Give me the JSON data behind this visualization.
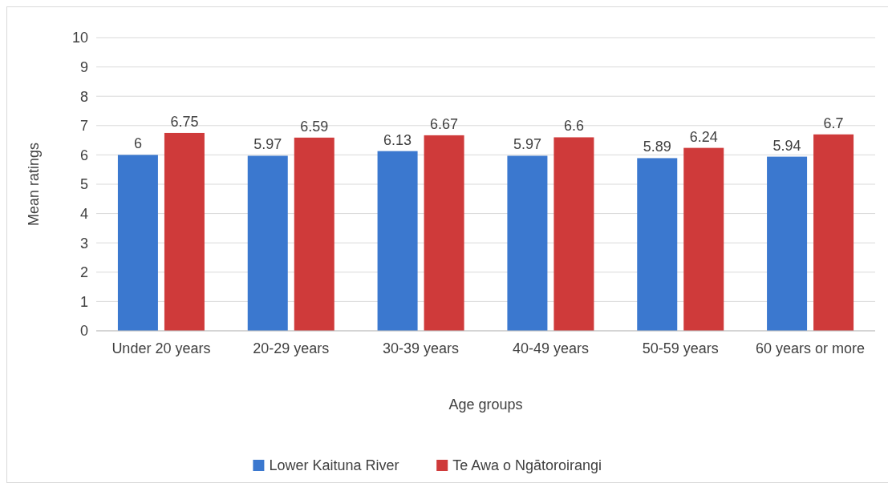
{
  "chart_data": {
    "type": "bar",
    "xlabel": "Age groups",
    "ylabel": "Mean ratings",
    "categories": [
      "Under 20 years",
      "20-29 years",
      "30-39 years",
      "40-49 years",
      "50-59 years",
      "60 years or more"
    ],
    "series": [
      {
        "name": "Lower Kaituna River",
        "color": "#3b78cf",
        "values": [
          6,
          5.97,
          6.13,
          5.97,
          5.89,
          5.94
        ]
      },
      {
        "name": "Te Awa o Ngātoroirangi",
        "color": "#cf3a3a",
        "values": [
          6.75,
          6.59,
          6.67,
          6.6,
          6.24,
          6.7
        ]
      }
    ],
    "ylim": [
      0,
      10
    ],
    "yticks": [
      0,
      1,
      2,
      3,
      4,
      5,
      6,
      7,
      8,
      9,
      10
    ],
    "grid": "y",
    "legend": "bottom",
    "data_labels": true
  }
}
